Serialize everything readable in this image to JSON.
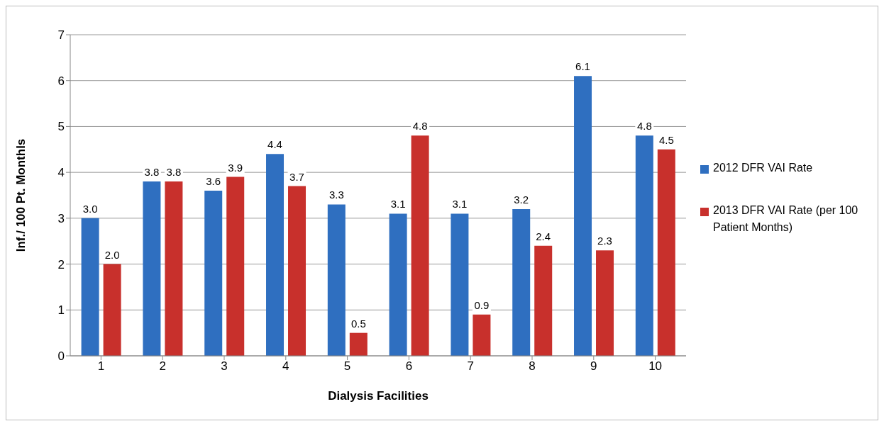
{
  "chart_data": {
    "type": "bar",
    "xlabel": "Dialysis Facilities",
    "ylabel": "Inf./ 100 Pt. Monthls",
    "categories": [
      "1",
      "2",
      "3",
      "4",
      "5",
      "6",
      "7",
      "8",
      "9",
      "10"
    ],
    "series": [
      {
        "name": "2012 DFR VAI Rate",
        "color": "#2f6fc0",
        "values": [
          3.0,
          3.8,
          3.6,
          4.4,
          3.3,
          3.1,
          3.1,
          3.2,
          6.1,
          4.8
        ],
        "value_labels": [
          "3.0",
          "3.8",
          "3.6",
          "4.4",
          "3.3",
          "3.1",
          "3.1",
          "3.2",
          "6.1",
          "4.8"
        ]
      },
      {
        "name": "2013 DFR VAI Rate (per 100 Patient Months)",
        "color": "#c8302c",
        "values": [
          2.0,
          3.8,
          3.9,
          3.7,
          0.5,
          4.8,
          0.9,
          2.4,
          2.3,
          4.5
        ],
        "value_labels": [
          "2.0",
          "3.8",
          "3.9",
          "3.7",
          "0.5",
          "4.8",
          "0.9",
          "2.4",
          "2.3",
          "4.5"
        ]
      }
    ],
    "ylim": [
      0,
      7
    ],
    "yticks": [
      0,
      1,
      2,
      3,
      4,
      5,
      6,
      7
    ],
    "grid": "y",
    "legend": "right"
  }
}
